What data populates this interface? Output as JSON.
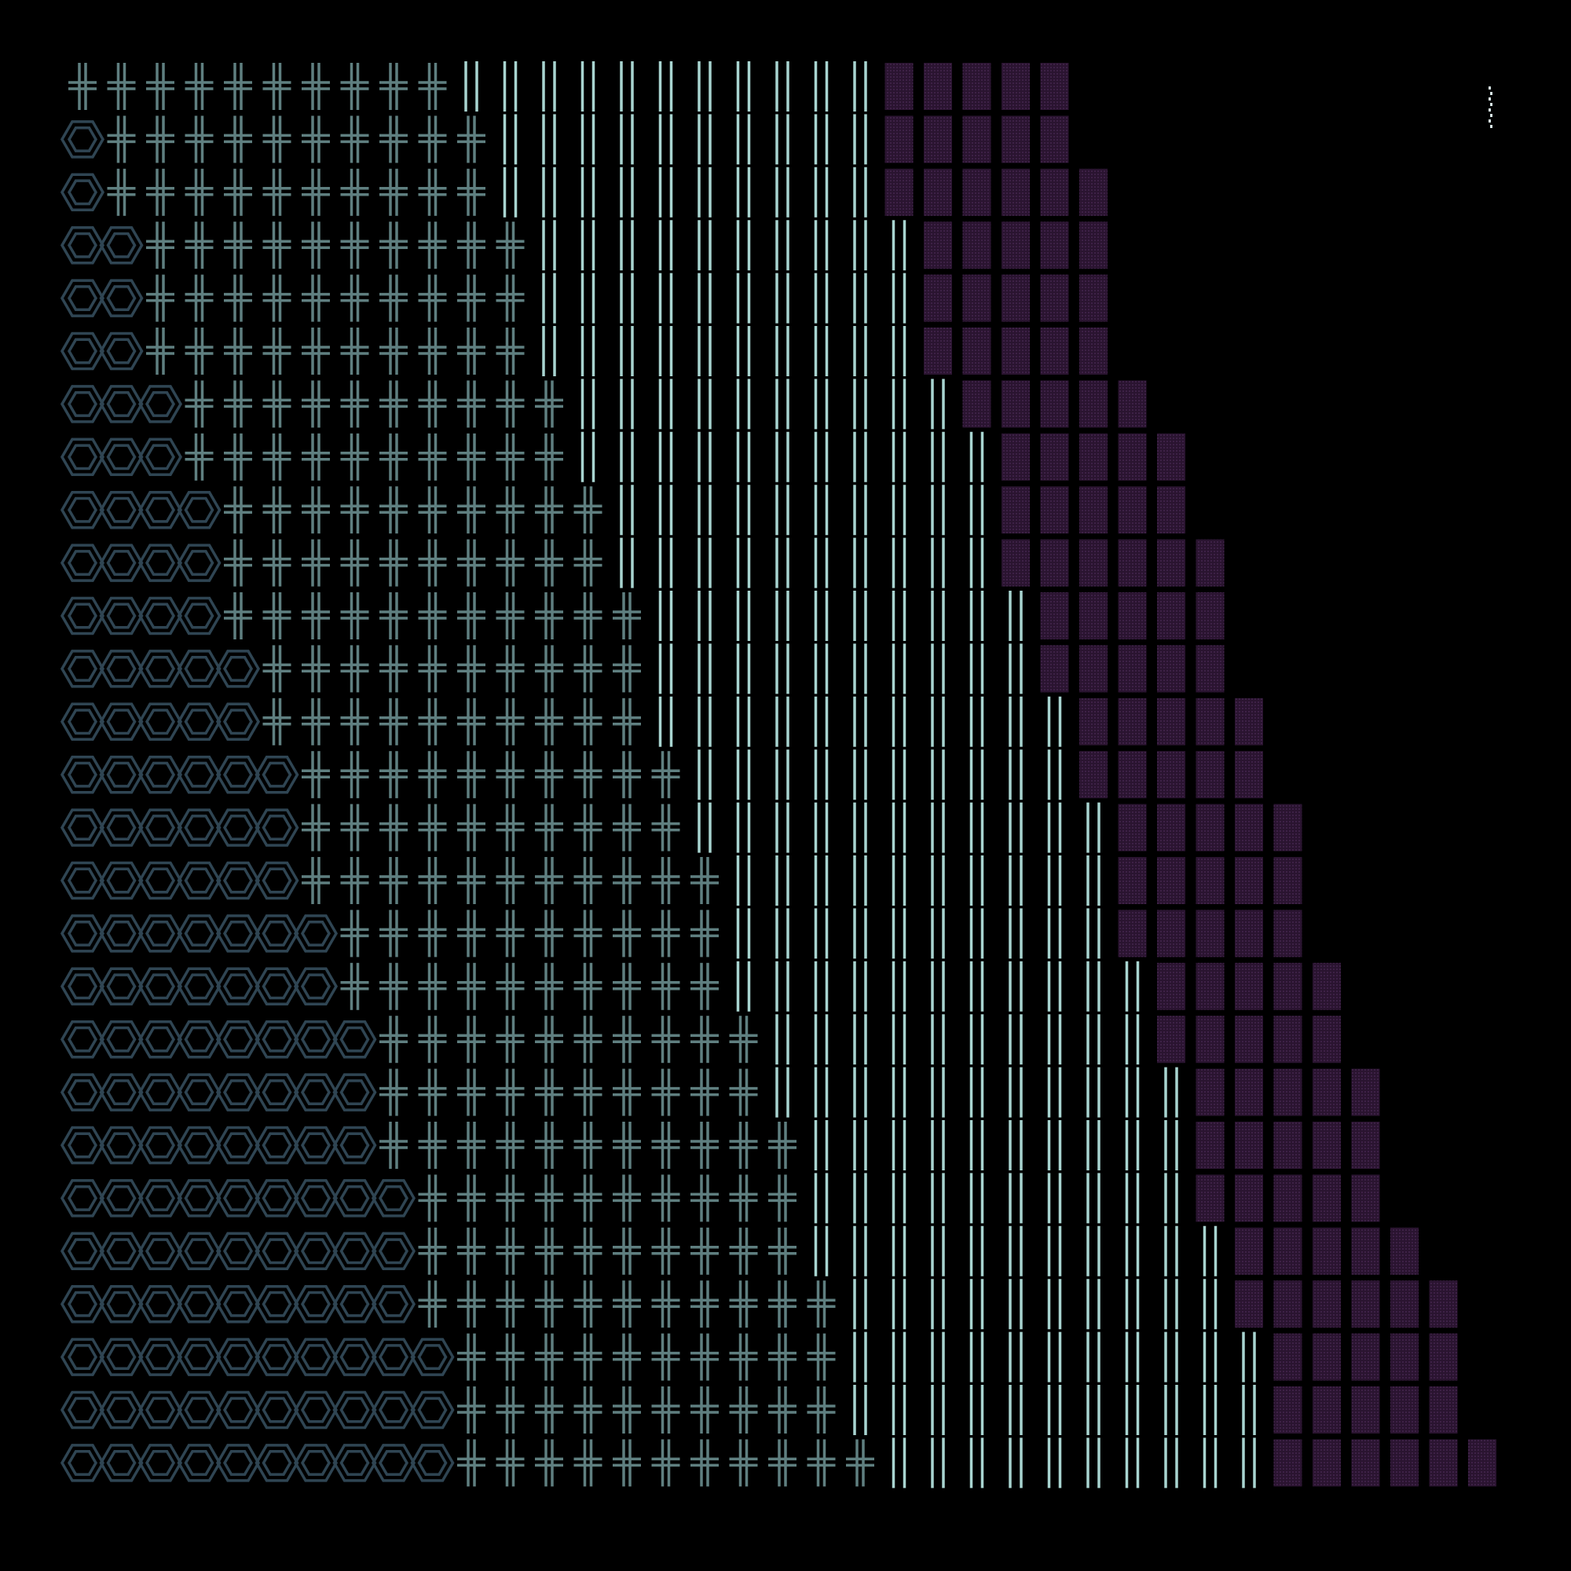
{
  "background": "#000000",
  "palette": {
    "hexagon": "#2f4553",
    "cross": "#5f7f80",
    "bars": "#a8d4d0",
    "block_fill": "#2a1430",
    "block_dots": "#4a2a55",
    "corner_mark": "#d8e8e8"
  },
  "glyph_grid": {
    "rows": 27,
    "columns": 36,
    "zones": [
      "hexagon",
      "cross",
      "bars",
      "block"
    ],
    "hexagon_counts": [
      0,
      1,
      1,
      2,
      2,
      2,
      3,
      3,
      4,
      4,
      4,
      5,
      5,
      6,
      6,
      6,
      7,
      7,
      8,
      8,
      8,
      9,
      9,
      9,
      10,
      10,
      10
    ],
    "cross_counts": [
      10,
      10,
      10,
      10,
      10,
      10,
      10,
      10,
      10,
      10,
      11,
      10,
      10,
      10,
      10,
      11,
      10,
      10,
      10,
      10,
      11,
      10,
      10,
      11,
      10,
      10,
      11
    ],
    "bar_counts": [
      11,
      10,
      10,
      10,
      10,
      10,
      10,
      11,
      10,
      10,
      10,
      10,
      11,
      10,
      11,
      10,
      10,
      11,
      10,
      11,
      10,
      10,
      11,
      10,
      11,
      11,
      10
    ],
    "block_counts": [
      5,
      5,
      6,
      5,
      5,
      5,
      5,
      5,
      5,
      6,
      5,
      5,
      5,
      5,
      5,
      5,
      5,
      5,
      5,
      5,
      5,
      5,
      5,
      6,
      5,
      5,
      6
    ]
  },
  "icons": [
    "hexagon-icon",
    "cross-icon",
    "double-bar-icon",
    "dotted-block-icon",
    "corner-mark-icon"
  ]
}
